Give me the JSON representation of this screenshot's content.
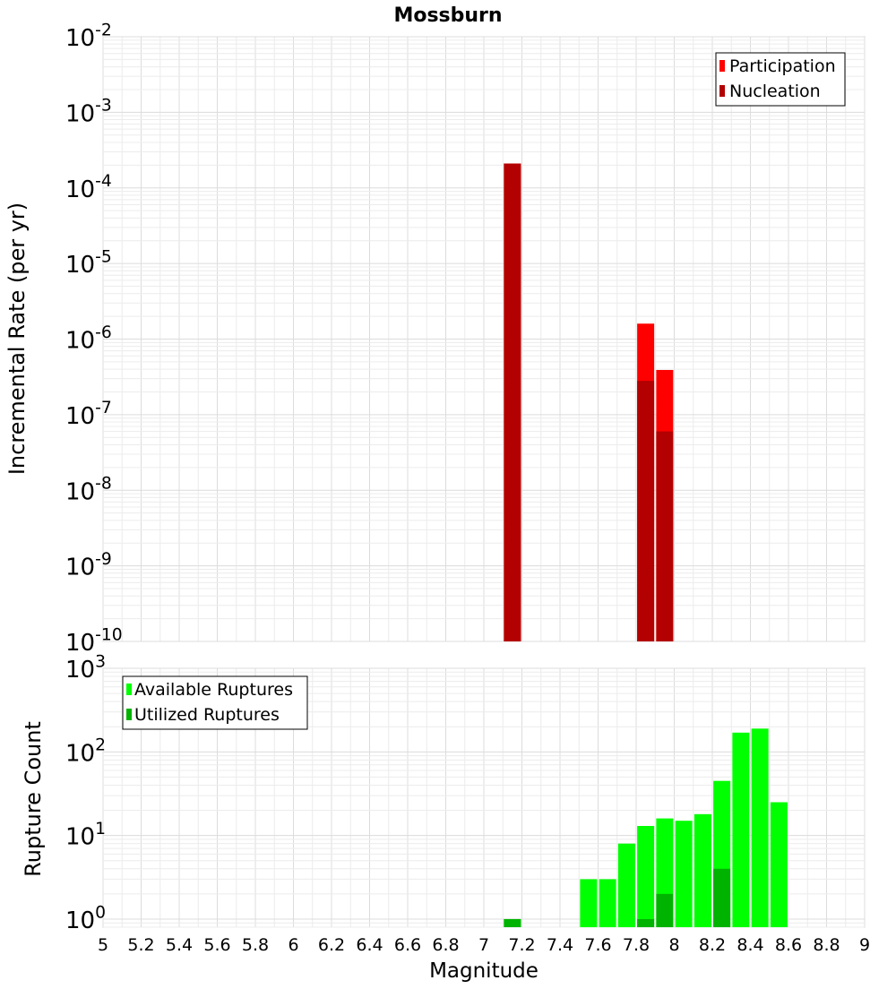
{
  "chart_data": [
    {
      "type": "bar",
      "title": "Mossburn",
      "xlabel": "",
      "ylabel": "Incremental Rate (per yr)",
      "yscale": "log",
      "ylim": [
        1e-10,
        0.01
      ],
      "xlim": [
        5,
        9
      ],
      "ytick_labels": [
        {
          "base": "10",
          "exp": "-10"
        },
        {
          "base": "10",
          "exp": "-9"
        },
        {
          "base": "10",
          "exp": "-8"
        },
        {
          "base": "10",
          "exp": "-7"
        },
        {
          "base": "10",
          "exp": "-6"
        },
        {
          "base": "10",
          "exp": "-5"
        },
        {
          "base": "10",
          "exp": "-4"
        },
        {
          "base": "10",
          "exp": "-3"
        },
        {
          "base": "10",
          "exp": "-2"
        }
      ],
      "grid": true,
      "legend_position": "top-right",
      "series": [
        {
          "name": "Participation",
          "color": "#ff0000",
          "points": [
            {
              "x": 7.15,
              "y": 0.00021
            },
            {
              "x": 7.85,
              "y": 1.6e-06
            },
            {
              "x": 7.95,
              "y": 3.9e-07
            }
          ]
        },
        {
          "name": "Nucleation",
          "color": "#b30000",
          "points": [
            {
              "x": 7.15,
              "y": 0.00021
            },
            {
              "x": 7.85,
              "y": 2.8e-07
            },
            {
              "x": 7.95,
              "y": 6e-08
            }
          ]
        }
      ]
    },
    {
      "type": "bar",
      "title": "",
      "xlabel": "Magnitude",
      "ylabel": "Rupture Count",
      "yscale": "log",
      "ylim": [
        0.8,
        1000
      ],
      "xlim": [
        5,
        9
      ],
      "ytick_labels": [
        {
          "base": "10",
          "exp": "0",
          "value": 1
        },
        {
          "base": "10",
          "exp": "1",
          "value": 10
        },
        {
          "base": "10",
          "exp": "2",
          "value": 100
        },
        {
          "base": "10",
          "exp": "3",
          "value": 1000
        }
      ],
      "xtick_labels": [
        "5",
        "5.2",
        "5.4",
        "5.6",
        "5.8",
        "6",
        "6.2",
        "6.4",
        "6.6",
        "6.8",
        "7",
        "7.2",
        "7.4",
        "7.6",
        "7.8",
        "8",
        "8.2",
        "8.4",
        "8.6",
        "8.8",
        "9"
      ],
      "grid": true,
      "legend_position": "top-left",
      "series": [
        {
          "name": "Available Ruptures",
          "color": "#00ff00",
          "points": [
            {
              "x": 7.15,
              "y": 1
            },
            {
              "x": 7.55,
              "y": 3
            },
            {
              "x": 7.65,
              "y": 3
            },
            {
              "x": 7.75,
              "y": 8
            },
            {
              "x": 7.85,
              "y": 13
            },
            {
              "x": 7.95,
              "y": 16
            },
            {
              "x": 8.05,
              "y": 15
            },
            {
              "x": 8.15,
              "y": 18
            },
            {
              "x": 8.25,
              "y": 45
            },
            {
              "x": 8.35,
              "y": 170
            },
            {
              "x": 8.45,
              "y": 190
            },
            {
              "x": 8.55,
              "y": 25
            }
          ]
        },
        {
          "name": "Utilized Ruptures",
          "color": "#00b300",
          "points": [
            {
              "x": 7.15,
              "y": 1
            },
            {
              "x": 7.85,
              "y": 1
            },
            {
              "x": 7.95,
              "y": 2
            },
            {
              "x": 8.25,
              "y": 4
            }
          ]
        }
      ]
    }
  ]
}
